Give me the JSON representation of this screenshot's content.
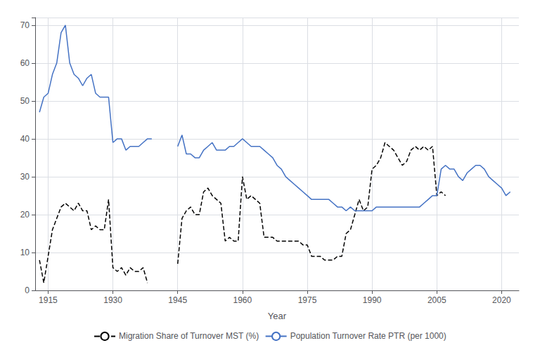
{
  "chart_data": {
    "type": "line",
    "x": [
      1913,
      1914,
      1915,
      1916,
      1917,
      1918,
      1919,
      1920,
      1921,
      1922,
      1923,
      1924,
      1925,
      1926,
      1927,
      1928,
      1929,
      1930,
      1931,
      1932,
      1933,
      1934,
      1935,
      1936,
      1937,
      1938,
      1939,
      1940,
      1941,
      1942,
      1943,
      1944,
      1945,
      1946,
      1947,
      1948,
      1949,
      1950,
      1951,
      1952,
      1953,
      1954,
      1955,
      1956,
      1957,
      1958,
      1959,
      1960,
      1961,
      1962,
      1963,
      1964,
      1965,
      1966,
      1967,
      1968,
      1969,
      1970,
      1971,
      1972,
      1973,
      1974,
      1975,
      1976,
      1977,
      1978,
      1979,
      1980,
      1981,
      1982,
      1983,
      1984,
      1985,
      1986,
      1987,
      1988,
      1989,
      1990,
      1991,
      1992,
      1993,
      1994,
      1995,
      1996,
      1997,
      1998,
      1999,
      2000,
      2001,
      2002,
      2003,
      2004,
      2005,
      2006,
      2007,
      2008,
      2009,
      2010,
      2011,
      2012,
      2013,
      2014,
      2015,
      2016,
      2017,
      2018,
      2019,
      2020,
      2021,
      2022
    ],
    "series": [
      {
        "name": "Migration Share of Turnover MST (%)",
        "color": "#000000",
        "line_style": "dashed",
        "values": [
          8,
          2,
          9,
          16,
          19,
          22,
          23,
          22,
          21,
          23,
          21,
          21,
          16,
          17,
          16,
          16,
          24,
          6,
          5,
          6,
          4,
          6,
          5,
          5,
          6,
          2,
          null,
          null,
          null,
          null,
          null,
          null,
          7,
          19,
          21,
          22,
          20,
          20,
          26,
          27,
          25,
          24,
          23,
          13,
          14,
          13,
          13,
          30,
          24,
          25,
          24,
          23,
          14,
          14,
          14,
          13,
          13,
          13,
          13,
          13,
          13,
          12,
          12,
          9,
          9,
          9,
          8,
          8,
          8,
          9,
          9,
          15,
          16,
          20,
          24,
          21,
          22,
          32,
          33,
          35,
          39,
          38,
          37,
          35,
          33,
          34,
          37,
          38,
          37,
          38,
          37,
          38,
          25,
          26,
          25,
          null,
          null,
          null,
          null,
          null,
          null,
          null,
          null,
          null,
          null,
          null,
          null,
          null,
          null,
          null
        ]
      },
      {
        "name": "Population Turnover Rate PTR (per 1000)",
        "color": "#4472c4",
        "line_style": "solid",
        "values": [
          47,
          51,
          52,
          57,
          60,
          68,
          70,
          60,
          57,
          56,
          54,
          56,
          57,
          52,
          51,
          51,
          51,
          39,
          40,
          40,
          37,
          38,
          38,
          38,
          39,
          40,
          40,
          null,
          null,
          null,
          null,
          null,
          38,
          41,
          36,
          36,
          35,
          35,
          37,
          38,
          39,
          37,
          37,
          37,
          38,
          38,
          39,
          40,
          39,
          38,
          38,
          38,
          37,
          36,
          35,
          33,
          32,
          30,
          29,
          28,
          27,
          26,
          25,
          24,
          24,
          24,
          24,
          24,
          23,
          22,
          22,
          21,
          22,
          21,
          21,
          21,
          21,
          21,
          22,
          22,
          22,
          22,
          22,
          22,
          22,
          22,
          22,
          22,
          22,
          23,
          24,
          25,
          25,
          32,
          33,
          32,
          32,
          30,
          29,
          31,
          32,
          33,
          33,
          32,
          30,
          29,
          28,
          27,
          25,
          26
        ]
      }
    ],
    "xlabel": "Year",
    "xlim": [
      1912,
      2024
    ],
    "xticks": [
      1915,
      1930,
      1945,
      1960,
      1975,
      1990,
      2005,
      2020
    ],
    "ylim": [
      0,
      72
    ],
    "yticks": [
      0,
      10,
      20,
      30,
      40,
      50,
      60,
      70
    ],
    "grid": true,
    "legend": "bottom"
  }
}
